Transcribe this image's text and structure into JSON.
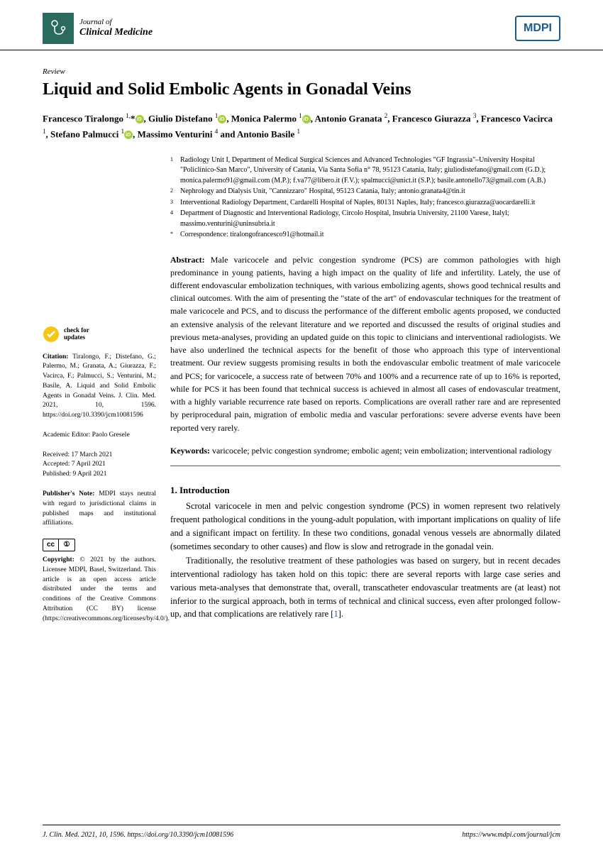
{
  "journal": {
    "top": "Journal of",
    "bottom": "Clinical Medicine"
  },
  "publisher_badge": "MDPI",
  "article_type": "Review",
  "title": "Liquid and Solid Embolic Agents in Gonadal Veins",
  "authors_html": "Francesco Tiralongo <sup>1,</sup>*<span class='orcid'></span>, Giulio Distefano <sup>1</sup><span class='orcid'></span>, Monica Palermo <sup>1</sup><span class='orcid'></span>, Antonio Granata <sup>2</sup>, Francesco Giurazza <sup>3</sup>, Francesco Vacirca <sup>1</sup>, Stefano Palmucci <sup>1</sup><span class='orcid'></span>, Massimo Venturini <sup>4</sup> and Antonio Basile <sup>1</sup>",
  "affiliations": [
    {
      "n": "1",
      "t": "Radiology Unit I, Department of Medical Surgical Sciences and Advanced Technologies \"GF Ingrassia\"–University Hospital \"Policlinico-San Marco\", University of Catania, Via Santa Sofia n° 78, 95123 Catania, Italy; giuliodistefano@gmail.com (G.D.); monica.palermo91@gmail.com (M.P.); f.va77@libero.it (F.V.); spalmucci@unict.it (S.P.); basile.antonello73@gmail.com (A.B.)"
    },
    {
      "n": "2",
      "t": "Nephrology and Dialysis Unit, \"Cannizzaro\" Hospital, 95123 Catania, Italy; antonio.granata4@tin.it"
    },
    {
      "n": "3",
      "t": "Interventional Radiology Department, Cardarelli Hospital of Naples, 80131 Naples, Italy; francesco.giurazza@aocardarelli.it"
    },
    {
      "n": "4",
      "t": "Department of Diagnostic and Interventional Radiology, Circolo Hospital, Insubria University, 21100 Varese, Italyl; massimo.venturini@uninsubria.it"
    },
    {
      "n": "*",
      "t": "Correspondence: tiralongofrancesco91@hotmail.it"
    }
  ],
  "check_updates": "check for\nupdates",
  "citation_label": "Citation:",
  "citation": " Tiralongo, F.; Distefano, G.; Palermo, M.; Granata, A.; Giurazza, F.; Vacirca, F.; Palmucci, S.; Venturini, M.; Basile, A. Liquid and Solid Embolic Agents in Gonadal Veins. J. Clin. Med. 2021, 10, 1596. https://doi.org/10.3390/jcm10081596",
  "editor_label": "Academic Editor: ",
  "editor": "Paolo Gresele",
  "dates": {
    "received": "Received: 17 March 2021",
    "accepted": "Accepted: 7 April 2021",
    "published": "Published: 9 April 2021"
  },
  "pubnote_label": "Publisher's Note:",
  "pubnote": " MDPI stays neutral with regard to jurisdictional claims in published maps and institutional affiliations.",
  "copyright_label": "Copyright:",
  "copyright": " © 2021 by the authors. Licensee MDPI, Basel, Switzerland. This article is an open access article distributed under the terms and conditions of the Creative Commons Attribution (CC BY) license (https://creativecommons.org/licenses/by/4.0/).",
  "abstract_label": "Abstract:",
  "abstract": " Male varicocele and pelvic congestion syndrome (PCS) are common pathologies with high predominance in young patients, having a high impact on the quality of life and infertility. Lately, the use of different endovascular embolization techniques, with various embolizing agents, shows good technical results and clinical outcomes. With the aim of presenting the \"state of the art\" of endovascular techniques for the treatment of male varicocele and PCS, and to discuss the performance of the different embolic agents proposed, we conducted an extensive analysis of the relevant literature and we reported and discussed the results of original studies and previous meta-analyses, providing an updated guide on this topic to clinicians and interventional radiologists. We have also underlined the technical aspects for the benefit of those who approach this type of interventional treatment. Our review suggests promising results in both the endovascular embolic treatment of male varicocele and PCS; for varicocele, a success rate of between 70% and 100% and a recurrence rate of up to 16% is reported, while for PCS it has been found that technical success is achieved in almost all cases of endovascular treatment, with a highly variable recurrence rate based on reports. Complications are overall rather rare and are represented by periprocedural pain, migration of embolic media and vascular perforations: severe adverse events have been reported very rarely.",
  "keywords_label": "Keywords:",
  "keywords": " varicocele; pelvic congestion syndrome; embolic agent; vein embolization; interventional radiology",
  "section1_heading": "1. Introduction",
  "para1": "Scrotal varicocele in men and pelvic congestion syndrome (PCS) in women represent two relatively frequent pathological conditions in the young-adult population, with important implications on quality of life and a significant impact on fertility. In these two conditions, gonadal venous vessels are abnormally dilated (sometimes secondary to other causes) and flow is slow and retrograde in the gonadal vein.",
  "para2_a": "Traditionally, the resolutive treatment of these pathologies was based on surgery, but in recent decades interventional radiology has taken hold on this topic: there are several reports with large case series and various meta-analyses that demonstrate that, overall, transcatheter endovascular treatments are (at least) not inferior to the surgical approach, both in terms of technical and clinical success, even after prolonged follow-up, and that complications are relatively rare [",
  "para2_ref": "1",
  "para2_b": "].",
  "footer_left": "J. Clin. Med. 2021, 10, 1596. https://doi.org/10.3390/jcm10081596",
  "footer_right": "https://www.mdpi.com/journal/jcm"
}
